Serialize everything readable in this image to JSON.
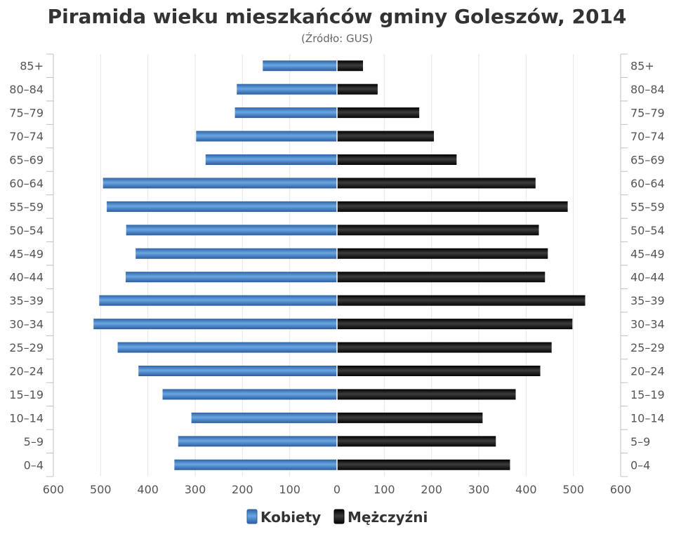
{
  "chart_data": {
    "type": "bar",
    "orientation": "horizontal-pyramid",
    "title": "Piramida wieku mieszkańców gminy Goleszów, 2014",
    "subtitle": "(Źródło: GUS)",
    "categories": [
      "85+",
      "80-84",
      "75-79",
      "70-74",
      "65-69",
      "60-64",
      "55-59",
      "50-54",
      "45-49",
      "40-44",
      "35-39",
      "30-34",
      "25-29",
      "20-24",
      "15-19",
      "10-14",
      "5-9",
      "0-4"
    ],
    "series": [
      {
        "name": "Kobiety",
        "side": "left",
        "color": "#4a86c8",
        "values": [
          157,
          212,
          216,
          298,
          278,
          495,
          487,
          446,
          426,
          447,
          503,
          515,
          464,
          420,
          369,
          308,
          336,
          344
        ]
      },
      {
        "name": "Mężczyźni",
        "side": "right",
        "color": "#1a1a1a",
        "values": [
          55,
          86,
          174,
          205,
          253,
          420,
          488,
          427,
          446,
          440,
          525,
          498,
          454,
          430,
          378,
          308,
          336,
          366
        ]
      }
    ],
    "xlim": [
      -600,
      600
    ],
    "x_ticks": [
      "600",
      "500",
      "400",
      "300",
      "200",
      "100",
      "0",
      "100",
      "200",
      "300",
      "400",
      "500",
      "600"
    ],
    "grid": true,
    "legend_position": "bottom"
  }
}
